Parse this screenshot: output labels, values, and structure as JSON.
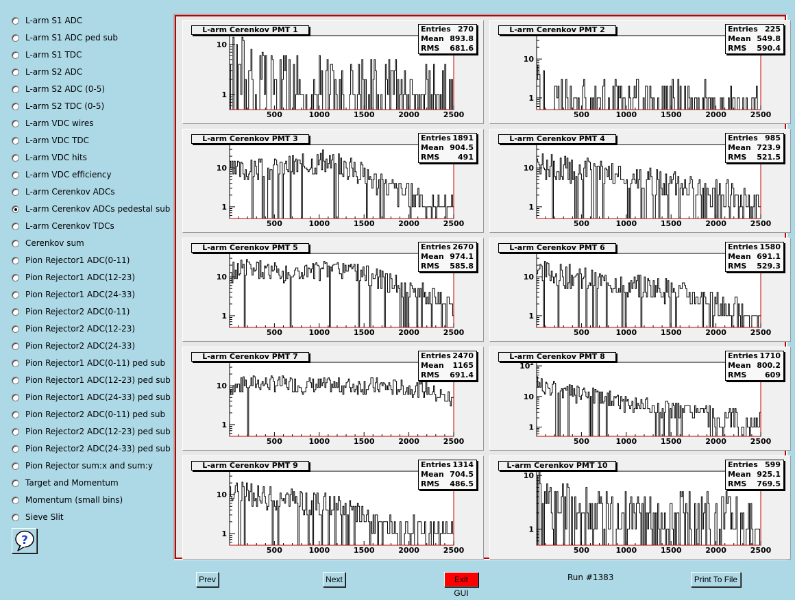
{
  "sidebar": {
    "items": [
      {
        "label": "L-arm S1 ADC",
        "checked": false
      },
      {
        "label": "L-arm S1 ADC ped sub",
        "checked": false
      },
      {
        "label": "L-arm S1 TDC",
        "checked": false
      },
      {
        "label": "L-arm S2 ADC",
        "checked": false
      },
      {
        "label": "L-arm S2 ADC (0-5)",
        "checked": false
      },
      {
        "label": "L-arm S2 TDC (0-5)",
        "checked": false
      },
      {
        "label": "L-arm VDC wires",
        "checked": false
      },
      {
        "label": "L-arm VDC TDC",
        "checked": false
      },
      {
        "label": "L-arm VDC hits",
        "checked": false
      },
      {
        "label": "L-arm VDC efficiency",
        "checked": false
      },
      {
        "label": "L-arm Cerenkov ADCs",
        "checked": false
      },
      {
        "label": "L-arm Cerenkov ADCs pedestal sub",
        "checked": true
      },
      {
        "label": "L-arm Cerenkov TDCs",
        "checked": false
      },
      {
        "label": "Cerenkov sum",
        "checked": false
      },
      {
        "label": "Pion Rejector1 ADC(0-11)",
        "checked": false
      },
      {
        "label": "Pion Rejector1 ADC(12-23)",
        "checked": false
      },
      {
        "label": "Pion Rejector1 ADC(24-33)",
        "checked": false
      },
      {
        "label": "Pion Rejector2 ADC(0-11)",
        "checked": false
      },
      {
        "label": "Pion Rejector2 ADC(12-23)",
        "checked": false
      },
      {
        "label": "Pion Rejector2 ADC(24-33)",
        "checked": false
      },
      {
        "label": "Pion Rejector1 ADC(0-11) ped sub",
        "checked": false
      },
      {
        "label": "Pion Rejector1 ADC(12-23) ped sub",
        "checked": false
      },
      {
        "label": "Pion Rejector1 ADC(24-33) ped sub",
        "checked": false
      },
      {
        "label": "Pion Rejector2 ADC(0-11) ped sub",
        "checked": false
      },
      {
        "label": "Pion Rejector2 ADC(12-23) ped sub",
        "checked": false
      },
      {
        "label": "Pion Rejector2 ADC(24-33) ped sub",
        "checked": false
      },
      {
        "label": "Pion Rejector sum:x and sum:y",
        "checked": false
      },
      {
        "label": "Target and Momentum",
        "checked": false
      },
      {
        "label": "Momentum (small bins)",
        "checked": false
      },
      {
        "label": "Sieve Slit",
        "checked": false
      }
    ],
    "help_icon": "question-mark-bubble-icon"
  },
  "colors": {
    "background": "#add8e6",
    "canvas_border": "#c00000",
    "exit_button": "#ff0000"
  },
  "stats_labels": {
    "entries": "Entries",
    "mean": "Mean",
    "rms": "RMS"
  },
  "chart_data": [
    {
      "type": "bar",
      "title": "L-arm Cerenkov PMT 1",
      "xticks": [
        "500",
        "1000",
        "1500",
        "2000",
        "2500"
      ],
      "yticks": [
        {
          "value": 1,
          "label": "1"
        },
        {
          "value": 10,
          "label": "10"
        }
      ],
      "xlim": [
        0,
        2500
      ],
      "ylim": [
        0.5,
        15
      ],
      "yscale": "log",
      "stats": {
        "entries": "270",
        "mean": "893.8",
        "rms": "681.6"
      },
      "profile": [
        [
          0,
          6
        ],
        [
          300,
          3
        ],
        [
          800,
          2
        ],
        [
          1500,
          1.8
        ],
        [
          2100,
          1.5
        ],
        [
          2500,
          1.3
        ]
      ],
      "fill": 0.6,
      "spread": 1.2,
      "seed": 1
    },
    {
      "type": "bar",
      "title": "L-arm Cerenkov PMT 2",
      "xticks": [
        "500",
        "1000",
        "1500",
        "2000",
        "2500"
      ],
      "yticks": [
        {
          "value": 1,
          "label": "1"
        },
        {
          "value": 10,
          "label": "10"
        }
      ],
      "xlim": [
        0,
        2500
      ],
      "ylim": [
        0.5,
        40
      ],
      "yscale": "log",
      "stats": {
        "entries": "225",
        "mean": "549.8",
        "rms": "590.4"
      },
      "profile": [
        [
          0,
          5
        ],
        [
          200,
          2.5
        ],
        [
          700,
          1.5
        ],
        [
          1500,
          1.2
        ],
        [
          2400,
          1
        ]
      ],
      "fill": 0.45,
      "spread": 0.9,
      "seed": 2
    },
    {
      "type": "bar",
      "title": "L-arm Cerenkov PMT 3",
      "xticks": [
        "500",
        "1000",
        "1500",
        "2000",
        "2500"
      ],
      "yticks": [
        {
          "value": 1,
          "label": "1"
        },
        {
          "value": 10,
          "label": "10"
        }
      ],
      "xlim": [
        0,
        2500
      ],
      "ylim": [
        0.5,
        40
      ],
      "yscale": "log",
      "stats": {
        "entries": "1891",
        "mean": "904.5",
        "rms": "491"
      },
      "profile": [
        [
          0,
          8
        ],
        [
          500,
          10
        ],
        [
          1000,
          15
        ],
        [
          1400,
          9
        ],
        [
          1700,
          4
        ],
        [
          2000,
          2
        ],
        [
          2400,
          1
        ]
      ],
      "fill": 0.9,
      "spread": 0.7,
      "seed": 3
    },
    {
      "type": "bar",
      "title": "L-arm Cerenkov PMT 4",
      "xticks": [
        "500",
        "1000",
        "1500",
        "2000",
        "2500"
      ],
      "yticks": [
        {
          "value": 1,
          "label": "1"
        },
        {
          "value": 10,
          "label": "10"
        }
      ],
      "xlim": [
        0,
        2500
      ],
      "ylim": [
        0.5,
        40
      ],
      "yscale": "log",
      "stats": {
        "entries": "985",
        "mean": "723.9",
        "rms": "521.5"
      },
      "profile": [
        [
          0,
          12
        ],
        [
          300,
          10
        ],
        [
          1000,
          6
        ],
        [
          1800,
          3
        ],
        [
          2200,
          2
        ],
        [
          2500,
          1
        ]
      ],
      "fill": 0.85,
      "spread": 0.8,
      "seed": 4
    },
    {
      "type": "bar",
      "title": "L-arm Cerenkov PMT 5",
      "xticks": [
        "500",
        "1000",
        "1500",
        "2000",
        "2500"
      ],
      "yticks": [
        {
          "value": 1,
          "label": "1"
        },
        {
          "value": 10,
          "label": "10"
        }
      ],
      "xlim": [
        0,
        2500
      ],
      "ylim": [
        0.5,
        40
      ],
      "yscale": "log",
      "stats": {
        "entries": "2670",
        "mean": "974.1",
        "rms": "585.8"
      },
      "profile": [
        [
          0,
          12
        ],
        [
          150,
          18
        ],
        [
          600,
          12
        ],
        [
          1300,
          15
        ],
        [
          1600,
          10
        ],
        [
          2000,
          5
        ],
        [
          2500,
          2
        ]
      ],
      "fill": 0.95,
      "spread": 0.6,
      "seed": 5
    },
    {
      "type": "bar",
      "title": "L-arm Cerenkov PMT 6",
      "xticks": [
        "500",
        "1000",
        "1500",
        "2000",
        "2500"
      ],
      "yticks": [
        {
          "value": 1,
          "label": "1"
        },
        {
          "value": 10,
          "label": "10"
        }
      ],
      "xlim": [
        0,
        2500
      ],
      "ylim": [
        0.5,
        40
      ],
      "yscale": "log",
      "stats": {
        "entries": "1580",
        "mean": "691.1",
        "rms": "529.3"
      },
      "profile": [
        [
          0,
          15
        ],
        [
          200,
          12
        ],
        [
          800,
          7
        ],
        [
          1400,
          5
        ],
        [
          1900,
          2.5
        ],
        [
          2500,
          1
        ]
      ],
      "fill": 0.88,
      "spread": 0.7,
      "seed": 6
    },
    {
      "type": "bar",
      "title": "L-arm Cerenkov PMT 7",
      "xticks": [
        "500",
        "1000",
        "1500",
        "2000",
        "2500"
      ],
      "yticks": [
        {
          "value": 1,
          "label": "1"
        },
        {
          "value": 10,
          "label": "10"
        }
      ],
      "xlim": [
        0,
        2500
      ],
      "ylim": [
        0.5,
        40
      ],
      "yscale": "log",
      "stats": {
        "entries": "2470",
        "mean": "1165",
        "rms": "691.4"
      },
      "profile": [
        [
          0,
          8
        ],
        [
          200,
          12
        ],
        [
          1000,
          10
        ],
        [
          1600,
          10
        ],
        [
          2200,
          8
        ],
        [
          2500,
          4
        ]
      ],
      "fill": 0.98,
      "spread": 0.5,
      "seed": 7
    },
    {
      "type": "bar",
      "title": "L-arm Cerenkov PMT 8",
      "xticks": [
        "500",
        "1000",
        "1500",
        "2000",
        "2500"
      ],
      "yticks": [
        {
          "value": 1,
          "label": "1"
        },
        {
          "value": 10,
          "label": "10"
        },
        {
          "value": 100,
          "label": "10^2"
        }
      ],
      "xlim": [
        0,
        2500
      ],
      "ylim": [
        0.5,
        130
      ],
      "yscale": "log",
      "stats": {
        "entries": "1710",
        "mean": "800.2",
        "rms": "609"
      },
      "profile": [
        [
          0,
          25
        ],
        [
          300,
          15
        ],
        [
          1000,
          6
        ],
        [
          1700,
          3
        ],
        [
          2200,
          2
        ],
        [
          2500,
          1.3
        ]
      ],
      "fill": 0.85,
      "spread": 0.7,
      "seed": 8
    },
    {
      "type": "bar",
      "title": "L-arm Cerenkov PMT 9",
      "xticks": [
        "500",
        "1000",
        "1500",
        "2000",
        "2500"
      ],
      "yticks": [
        {
          "value": 1,
          "label": "1"
        },
        {
          "value": 10,
          "label": "10"
        }
      ],
      "xlim": [
        0,
        2500
      ],
      "ylim": [
        0.5,
        40
      ],
      "yscale": "log",
      "stats": {
        "entries": "1314",
        "mean": "704.5",
        "rms": "486.5"
      },
      "profile": [
        [
          0,
          12
        ],
        [
          500,
          8
        ],
        [
          1200,
          5
        ],
        [
          1500,
          3
        ],
        [
          1800,
          1.5
        ],
        [
          2500,
          1
        ]
      ],
      "fill": 0.85,
      "spread": 0.7,
      "seed": 9
    },
    {
      "type": "bar",
      "title": "L-arm Cerenkov PMT 10",
      "xticks": [
        "500",
        "1000",
        "1500",
        "2000",
        "2500"
      ],
      "yticks": [
        {
          "value": 1,
          "label": "1"
        },
        {
          "value": 10,
          "label": "10"
        }
      ],
      "xlim": [
        0,
        2500
      ],
      "ylim": [
        0.5,
        12
      ],
      "yscale": "log",
      "stats": {
        "entries": "599",
        "mean": "925.1",
        "rms": "769.5"
      },
      "profile": [
        [
          0,
          10
        ],
        [
          200,
          3
        ],
        [
          1000,
          2
        ],
        [
          2000,
          2
        ],
        [
          2500,
          1.5
        ]
      ],
      "fill": 0.7,
      "spread": 0.9,
      "seed": 10
    }
  ],
  "buttons": {
    "prev": "Prev",
    "next": "Next",
    "exit": "Exit GUI",
    "print": "Print To File"
  },
  "run_label": "Run #1383"
}
